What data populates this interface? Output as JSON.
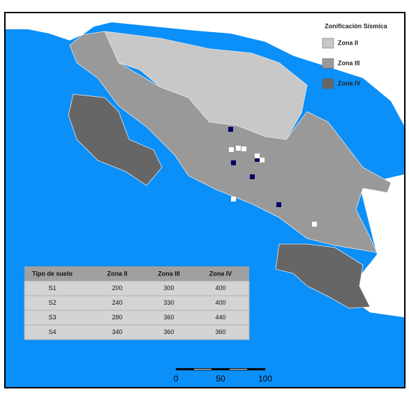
{
  "legend": {
    "title": "Zonificación Sísmica",
    "items": [
      "Zona II",
      "Zona III",
      "Zona IV"
    ]
  },
  "table": {
    "header": [
      "Tipo de suelo",
      "Zona II",
      "Zona III",
      "Zona IV"
    ],
    "rows": [
      [
        "S1",
        200,
        300,
        400
      ],
      [
        "S2",
        240,
        330,
        400
      ],
      [
        "S3",
        280,
        360,
        440
      ],
      [
        "S4",
        340,
        360,
        360
      ]
    ]
  },
  "scale_bar": {
    "labels": [
      0,
      50,
      100
    ]
  }
}
